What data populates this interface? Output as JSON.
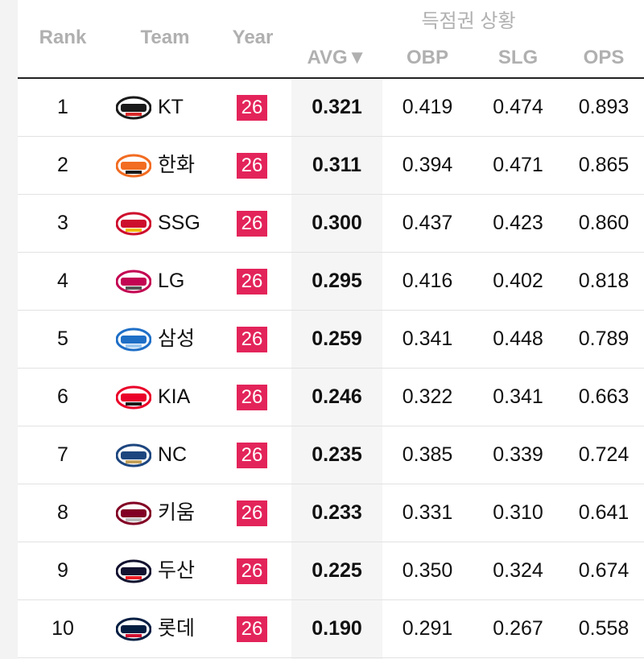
{
  "header": {
    "rank": "Rank",
    "team": "Team",
    "year": "Year",
    "group_label": "득점권 상황",
    "avg": "AVG▼",
    "obp": "OBP",
    "slg": "SLG",
    "ops": "OPS"
  },
  "colors": {
    "year_badge": "#e3245a",
    "sorted_column_bg": "#f5f5f5"
  },
  "rows": [
    {
      "rank": "1",
      "team": "KT",
      "logo": "kt-wiz-logo",
      "year": "26",
      "avg": "0.321",
      "obp": "0.419",
      "slg": "0.474",
      "ops": "0.893",
      "logo_color": "#1a1a1a",
      "logo_accent": "#d92a2a"
    },
    {
      "rank": "2",
      "team": "한화",
      "logo": "eagles-logo",
      "year": "26",
      "avg": "0.311",
      "obp": "0.394",
      "slg": "0.471",
      "ops": "0.865",
      "logo_color": "#f26c22",
      "logo_accent": "#1a1a1a"
    },
    {
      "rank": "3",
      "team": "SSG",
      "logo": "landers-logo",
      "year": "26",
      "avg": "0.300",
      "obp": "0.437",
      "slg": "0.423",
      "ops": "0.860",
      "logo_color": "#ce0e2d",
      "logo_accent": "#f2b705"
    },
    {
      "rank": "4",
      "team": "LG",
      "logo": "lg-twins-logo",
      "year": "26",
      "avg": "0.295",
      "obp": "0.416",
      "slg": "0.402",
      "ops": "0.818",
      "logo_color": "#c30452",
      "logo_accent": "#555555"
    },
    {
      "rank": "5",
      "team": "삼성",
      "logo": "lions-logo",
      "year": "26",
      "avg": "0.259",
      "obp": "0.341",
      "slg": "0.448",
      "ops": "0.789",
      "logo_color": "#1f6fc7",
      "logo_accent": "#9ec8f0"
    },
    {
      "rank": "6",
      "team": "KIA",
      "logo": "tigers-logo",
      "year": "26",
      "avg": "0.246",
      "obp": "0.322",
      "slg": "0.341",
      "ops": "0.663",
      "logo_color": "#ea0029",
      "logo_accent": "#1a1a1a"
    },
    {
      "rank": "7",
      "team": "NC",
      "logo": "dinos-logo",
      "year": "26",
      "avg": "0.235",
      "obp": "0.385",
      "slg": "0.339",
      "ops": "0.724",
      "logo_color": "#1d467f",
      "logo_accent": "#c4a15a"
    },
    {
      "rank": "8",
      "team": "키움",
      "logo": "kiwoom-logo",
      "year": "26",
      "avg": "0.233",
      "obp": "0.331",
      "slg": "0.310",
      "ops": "0.641",
      "logo_color": "#820024",
      "logo_accent": "#bbbbbb"
    },
    {
      "rank": "9",
      "team": "두산",
      "logo": "bears-logo",
      "year": "26",
      "avg": "0.225",
      "obp": "0.350",
      "slg": "0.324",
      "ops": "0.674",
      "logo_color": "#131230",
      "logo_accent": "#ed1c24"
    },
    {
      "rank": "10",
      "team": "롯데",
      "logo": "giants-logo",
      "year": "26",
      "avg": "0.190",
      "obp": "0.291",
      "slg": "0.267",
      "ops": "0.558",
      "logo_color": "#041e42",
      "logo_accent": "#d00f31"
    }
  ]
}
